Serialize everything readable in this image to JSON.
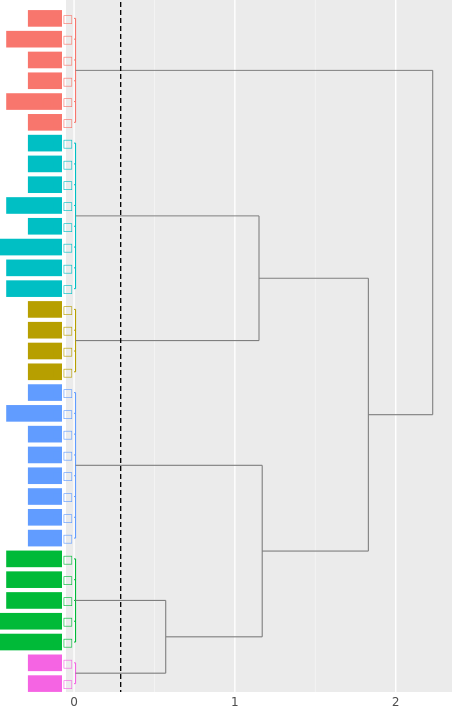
{
  "chart_data": {
    "type": "dendrogram",
    "x_axis": {
      "ticks": [
        0,
        1,
        2
      ],
      "range": [
        -0.05,
        2.35
      ]
    },
    "cut_height": 0.29,
    "groups": [
      {
        "color": "#f8766d",
        "leaves": [
          "□□",
          "□□",
          "□□",
          "□□",
          "□□□",
          "□□"
        ]
      },
      {
        "color": "#00bfc4",
        "leaves": [
          "□□",
          "□□",
          "□□",
          "□□",
          "□□",
          "□□□",
          "□□",
          "□□"
        ]
      },
      {
        "color": "#b79f00",
        "leaves": [
          "□□",
          "□",
          "□□",
          "□□"
        ]
      },
      {
        "color": "#619cff",
        "leaves": [
          "□□",
          "□□",
          "□□",
          "□□",
          "□□",
          "□□",
          "□□",
          "□□"
        ]
      },
      {
        "color": "#00ba38",
        "leaves": [
          "□",
          "□□",
          "□□",
          "□□",
          "□□"
        ]
      },
      {
        "color": "#f564e3",
        "leaves": [
          "□□",
          "□"
        ]
      }
    ],
    "bar_values": [
      0.55,
      0.9,
      0.55,
      0.55,
      0.9,
      0.55,
      0.55,
      0.55,
      0.55,
      0.9,
      0.55,
      1.0,
      0.9,
      0.9,
      0.55,
      0.55,
      0.55,
      0.55,
      0.55,
      0.9,
      0.55,
      0.55,
      0.55,
      0.55,
      0.55,
      0.55,
      0.9,
      0.9,
      0.9,
      1.0,
      1.0,
      0.55,
      0.55
    ],
    "merges": [
      {
        "groups": [
          1,
          2
        ],
        "height": 1.15
      },
      {
        "groups": [
          4,
          5
        ],
        "height": 0.57
      },
      {
        "groups": [
          3,
          4
        ],
        "height": 1.17
      },
      {
        "groups": [
          1,
          3
        ],
        "height": 1.83
      },
      {
        "groups": [
          0,
          1
        ],
        "height": 2.23
      }
    ]
  }
}
